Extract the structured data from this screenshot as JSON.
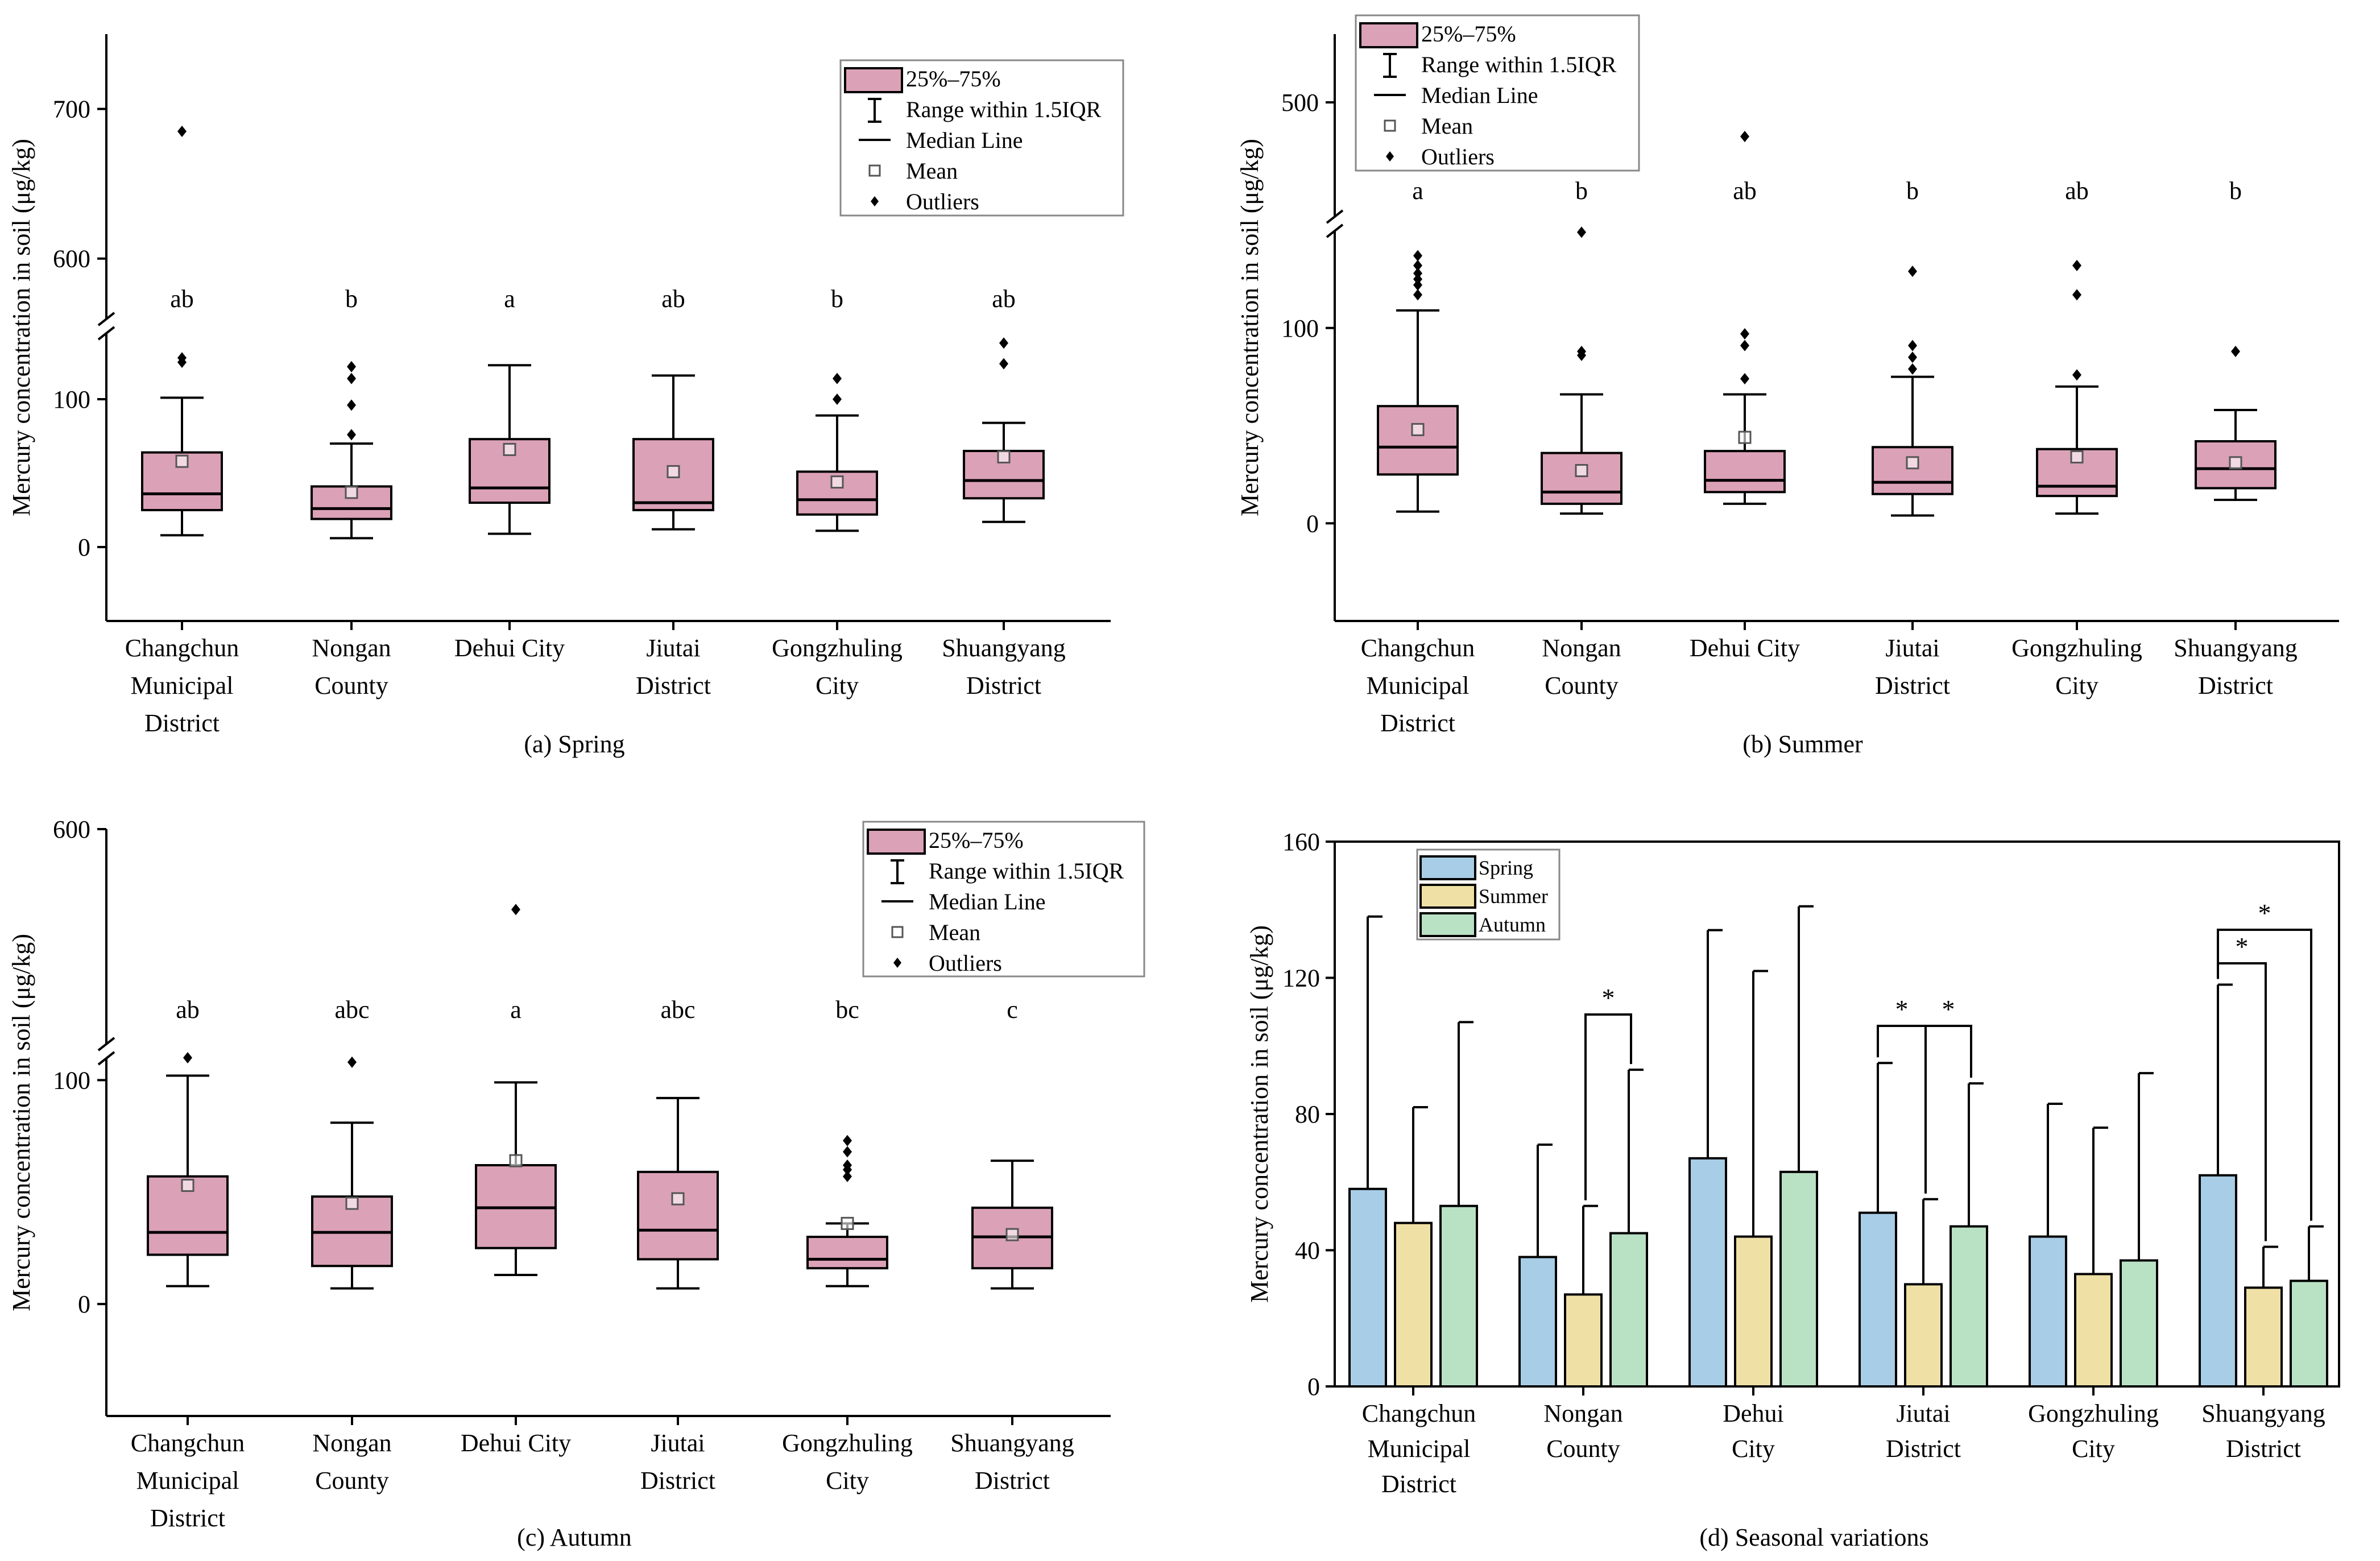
{
  "figure": {
    "colors": {
      "box": "#dba1b7",
      "spring": "#a8cde6",
      "summer": "#efe0a6",
      "autumn": "#b9e2c4",
      "ink": "#000000"
    }
  },
  "chart_data": [
    {
      "id": "a",
      "type": "box",
      "caption": "(a) Spring",
      "ylabel": "Mercury concentration in soil (μg/kg)",
      "categories": [
        "Changchun Municipal District",
        "Nongan County",
        "Dehui City",
        "Jiutai District",
        "Gongzhuling City",
        "Shuangyang District"
      ],
      "category_lines": [
        [
          "Changchun",
          "Municipal",
          "District"
        ],
        [
          "Nongan",
          "County"
        ],
        [
          "Dehui City"
        ],
        [
          "Jiutai",
          "District"
        ],
        [
          "Gongzhuling",
          "City"
        ],
        [
          "Shuangyang",
          "District"
        ]
      ],
      "axis_break": true,
      "lower_ylim": [
        -50,
        145
      ],
      "lower_ticks": [
        0,
        100
      ],
      "upper_ylim": [
        560,
        750
      ],
      "upper_ticks": [
        600,
        700
      ],
      "legend_entries": [
        "25%–75%",
        "Range within 1.5IQR",
        "Median Line",
        "Mean",
        "Outliers"
      ],
      "boxes": [
        {
          "q1": 25,
          "median": 36,
          "q3": 64,
          "wlo": 8,
          "whi": 101,
          "mean": 58,
          "outliers": [
            125,
            128,
            685
          ],
          "letter": "ab"
        },
        {
          "q1": 19,
          "median": 26,
          "q3": 41,
          "wlo": 6,
          "whi": 70,
          "mean": 37,
          "outliers": [
            76,
            96,
            114,
            122
          ],
          "letter": "b"
        },
        {
          "q1": 30,
          "median": 40,
          "q3": 73,
          "wlo": 9,
          "whi": 123,
          "mean": 66,
          "outliers": [],
          "letter": "a"
        },
        {
          "q1": 25,
          "median": 30,
          "q3": 73,
          "wlo": 12,
          "whi": 116,
          "mean": 51,
          "outliers": [],
          "letter": "ab"
        },
        {
          "q1": 22,
          "median": 32,
          "q3": 51,
          "wlo": 11,
          "whi": 89,
          "mean": 44,
          "outliers": [
            100,
            114
          ],
          "letter": "b"
        },
        {
          "q1": 33,
          "median": 45,
          "q3": 65,
          "wlo": 17,
          "whi": 84,
          "mean": 61,
          "outliers": [
            124,
            138
          ],
          "letter": "ab"
        }
      ]
    },
    {
      "id": "b",
      "type": "box",
      "caption": "(b) Summer",
      "ylabel": "Mercury concentration in soil (μg/kg)",
      "categories": [
        "Changchun Municipal District",
        "Nongan County",
        "Dehui City",
        "Jiutai District",
        "Gongzhuling City",
        "Shuangyang District"
      ],
      "category_lines": [
        [
          "Changchun",
          "Municipal",
          "District"
        ],
        [
          "Nongan",
          "County"
        ],
        [
          "Dehui City"
        ],
        [
          "Jiutai",
          "District"
        ],
        [
          "Gongzhuling",
          "City"
        ],
        [
          "Shuangyang",
          "District"
        ]
      ],
      "axis_break": true,
      "lower_ylim": [
        -50,
        150
      ],
      "lower_ticks": [
        0,
        100
      ],
      "upper_ylim": [
        400,
        560
      ],
      "upper_ticks": [
        500
      ],
      "legend_entries": [
        "25%–75%",
        "Range within 1.5IQR",
        "Median Line",
        "Mean",
        "Outliers"
      ],
      "boxes": [
        {
          "q1": 25,
          "median": 39,
          "q3": 60,
          "wlo": 6,
          "whi": 109,
          "mean": 48,
          "outliers": [
            117,
            122,
            125,
            128,
            132,
            137
          ],
          "letter": "a"
        },
        {
          "q1": 10,
          "median": 16,
          "q3": 36,
          "wlo": 5,
          "whi": 66,
          "mean": 27,
          "outliers": [
            86,
            88,
            149
          ],
          "letter": "b"
        },
        {
          "q1": 16,
          "median": 22,
          "q3": 37,
          "wlo": 10,
          "whi": 66,
          "mean": 44,
          "outliers": [
            74,
            91,
            97,
            470
          ],
          "letter": "ab"
        },
        {
          "q1": 15,
          "median": 21,
          "q3": 39,
          "wlo": 4,
          "whi": 75,
          "mean": 31,
          "outliers": [
            79,
            85,
            91,
            129
          ],
          "letter": "b"
        },
        {
          "q1": 14,
          "median": 19,
          "q3": 38,
          "wlo": 5,
          "whi": 70,
          "mean": 34,
          "outliers": [
            76,
            117,
            132
          ],
          "letter": "ab"
        },
        {
          "q1": 18,
          "median": 28,
          "q3": 42,
          "wlo": 12,
          "whi": 58,
          "mean": 31,
          "outliers": [
            88
          ],
          "letter": "b"
        }
      ]
    },
    {
      "id": "c",
      "type": "box",
      "caption": "(c) Autumn",
      "ylabel": "Mercury concentration in soil (μg/kg)",
      "categories": [
        "Changchun Municipal District",
        "Nongan County",
        "Dehui City",
        "Jiutai District",
        "Gongzhuling City",
        "Shuangyang District"
      ],
      "category_lines": [
        [
          "Changchun",
          "Municipal",
          "District"
        ],
        [
          "Nongan",
          "County"
        ],
        [
          "Dehui City"
        ],
        [
          "Jiutai",
          "District"
        ],
        [
          "Gongzhuling",
          "City"
        ],
        [
          "Shuangyang",
          "District"
        ]
      ],
      "axis_break": true,
      "lower_ylim": [
        -50,
        110
      ],
      "lower_ticks": [
        0,
        100
      ],
      "upper_ylim": [
        200,
        600
      ],
      "upper_ticks": [
        600
      ],
      "legend_entries": [
        "25%–75%",
        "Range within 1.5IQR",
        "Median Line",
        "Mean",
        "Outliers"
      ],
      "boxes": [
        {
          "q1": 22,
          "median": 32,
          "q3": 57,
          "wlo": 8,
          "whi": 102,
          "mean": 53,
          "outliers": [
            110
          ],
          "letter": "ab"
        },
        {
          "q1": 17,
          "median": 32,
          "q3": 48,
          "wlo": 7,
          "whi": 81,
          "mean": 45,
          "outliers": [
            108
          ],
          "letter": "abc"
        },
        {
          "q1": 25,
          "median": 43,
          "q3": 62,
          "wlo": 13,
          "whi": 99,
          "mean": 64,
          "outliers": [
            450
          ],
          "letter": "a"
        },
        {
          "q1": 20,
          "median": 33,
          "q3": 59,
          "wlo": 7,
          "whi": 92,
          "mean": 47,
          "outliers": [],
          "letter": "abc"
        },
        {
          "q1": 16,
          "median": 20,
          "q3": 30,
          "wlo": 8,
          "whi": 36,
          "mean": 36,
          "outliers": [
            57,
            60,
            62,
            68,
            73
          ],
          "letter": "bc"
        },
        {
          "q1": 16,
          "median": 30,
          "q3": 43,
          "wlo": 7,
          "whi": 64,
          "mean": 31,
          "outliers": [],
          "letter": "c"
        }
      ]
    },
    {
      "id": "d",
      "type": "bar",
      "caption": "(d) Seasonal variations",
      "ylabel": "Mercury concentration in soil (μg/kg)",
      "categories": [
        "Changchun Municipal District",
        "Nongan County",
        "Dehui City",
        "Jiutai District",
        "Gongzhuling City",
        "Shuangyang District"
      ],
      "category_lines": [
        [
          "Changchun",
          "Municipal",
          "District"
        ],
        [
          "Nongan",
          "County"
        ],
        [
          "Dehui",
          "City"
        ],
        [
          "Jiutai",
          "District"
        ],
        [
          "Gongzhuling",
          "City"
        ],
        [
          "Shuangyang",
          "District"
        ]
      ],
      "ylim": [
        0,
        160
      ],
      "yticks": [
        0,
        40,
        80,
        120,
        160
      ],
      "series": [
        {
          "name": "Spring",
          "values": [
            58,
            38,
            67,
            51,
            44,
            62
          ],
          "error_top": [
            138,
            71,
            134,
            95,
            83,
            118
          ]
        },
        {
          "name": "Summer",
          "values": [
            48,
            27,
            44,
            30,
            33,
            29
          ],
          "error_top": [
            82,
            53,
            122,
            55,
            76,
            41
          ]
        },
        {
          "name": "Autumn",
          "values": [
            53,
            45,
            63,
            47,
            37,
            31
          ],
          "error_top": [
            107,
            93,
            141,
            89,
            92,
            47
          ]
        }
      ],
      "significance": [
        {
          "category": "Nongan County",
          "pair": [
            "Summer",
            "Autumn"
          ],
          "label": "*"
        },
        {
          "category": "Jiutai District",
          "pair": [
            "Spring",
            "Summer"
          ],
          "label": "*"
        },
        {
          "category": "Jiutai District",
          "pair": [
            "Summer",
            "Autumn"
          ],
          "label": "*"
        },
        {
          "category": "Shuangyang District",
          "pair": [
            "Spring",
            "Summer"
          ],
          "label": "*"
        },
        {
          "category": "Shuangyang District",
          "pair": [
            "Spring",
            "Autumn"
          ],
          "label": "*"
        }
      ]
    }
  ]
}
